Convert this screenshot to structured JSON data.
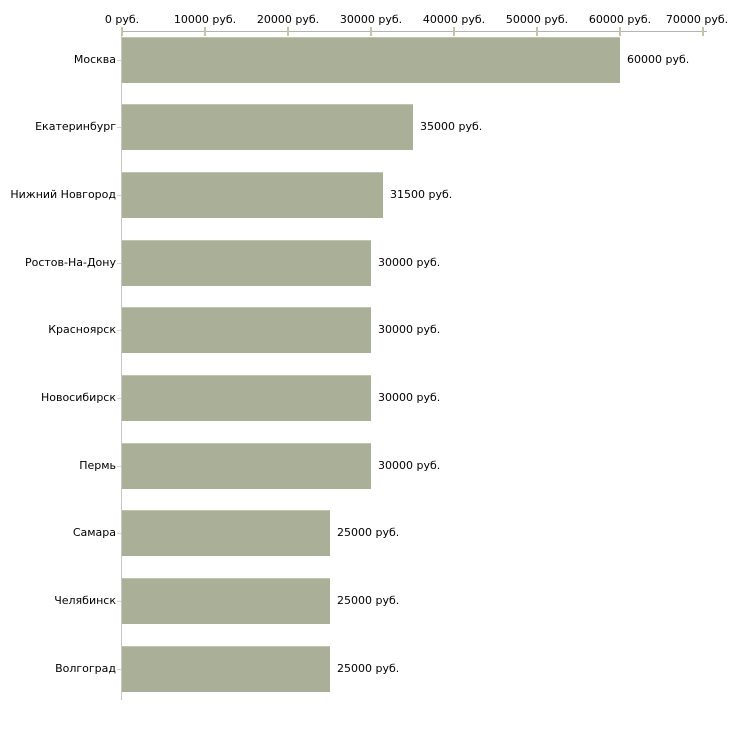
{
  "chart_data": {
    "type": "bar",
    "orientation": "horizontal",
    "title": "",
    "categories": [
      "Москва",
      "Екатеринбург",
      "Нижний Новгород",
      "Ростов-На-Дону",
      "Красноярск",
      "Новосибирск",
      "Пермь",
      "Самара",
      "Челябинск",
      "Волгоград"
    ],
    "values": [
      60000,
      35000,
      31500,
      30000,
      30000,
      30000,
      30000,
      25000,
      25000,
      25000
    ],
    "value_labels": [
      "60000 руб.",
      "35000 руб.",
      "31500 руб.",
      "30000 руб.",
      "30000 руб.",
      "30000 руб.",
      "30000 руб.",
      "25000 руб.",
      "25000 руб.",
      "25000 руб."
    ],
    "unit": "руб.",
    "axis": {
      "position": "top",
      "min": 0,
      "max": 70000,
      "step": 10000,
      "tick_labels": [
        "0 руб.",
        "10000 руб.",
        "20000 руб.",
        "30000 руб.",
        "40000 руб.",
        "50000 руб.",
        "60000 руб.",
        "70000 руб."
      ]
    },
    "legend": null,
    "grid": false,
    "colors": {
      "bar": "#aab098",
      "bar_highlight": "#c0c5ae",
      "axis_line": "#b3b3b3",
      "axis_tick": "#c5c5a5",
      "y_axis_line": "#c6c6c6",
      "label_tick": "#d4d4c8",
      "text": "#000000",
      "background": "#ffffff"
    }
  }
}
